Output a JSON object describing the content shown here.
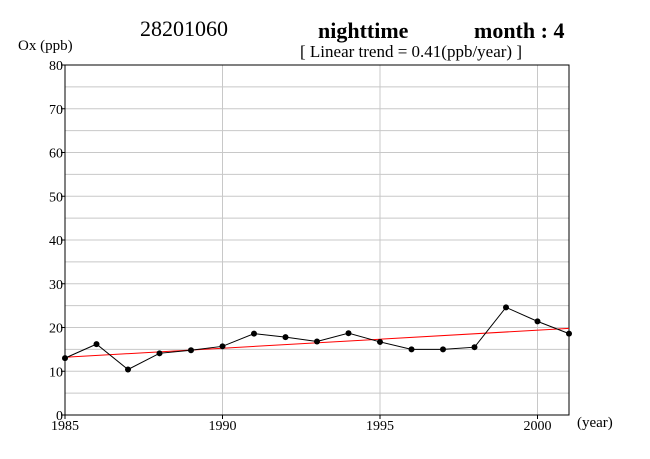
{
  "header": {
    "station": "28201060",
    "period": "nighttime",
    "month": "month : 4",
    "trend_text": "[ Linear trend = 0.41(ppb/year) ]"
  },
  "chart_data": {
    "type": "line",
    "title": "28201060  nighttime  month : 4",
    "subtitle": "[ Linear trend = 0.41(ppb/year) ]",
    "ylabel": "Ox (ppb)",
    "xlabel": "(year)",
    "xlim": [
      1985,
      2001
    ],
    "ylim": [
      0,
      80
    ],
    "x_ticks": [
      1985,
      1990,
      1995,
      2000
    ],
    "y_ticks": [
      0,
      10,
      20,
      30,
      40,
      50,
      60,
      70,
      80
    ],
    "y_minor_step": 5,
    "grid": true,
    "series": [
      {
        "color": "#000000",
        "marker": "circle",
        "x": [
          1985,
          1986,
          1987,
          1988,
          1989,
          1990,
          1991,
          1992,
          1993,
          1994,
          1995,
          1996,
          1997,
          1998,
          1999,
          2000,
          2001
        ],
        "y": [
          13.0,
          16.2,
          10.4,
          14.1,
          14.8,
          15.7,
          18.6,
          17.8,
          16.8,
          18.7,
          16.7,
          15.0,
          15.0,
          15.5,
          24.6,
          21.4,
          18.6
        ]
      }
    ],
    "trend_line": {
      "color": "#ff0000",
      "x": [
        1985,
        2001
      ],
      "y": [
        13.2,
        19.8
      ]
    }
  }
}
